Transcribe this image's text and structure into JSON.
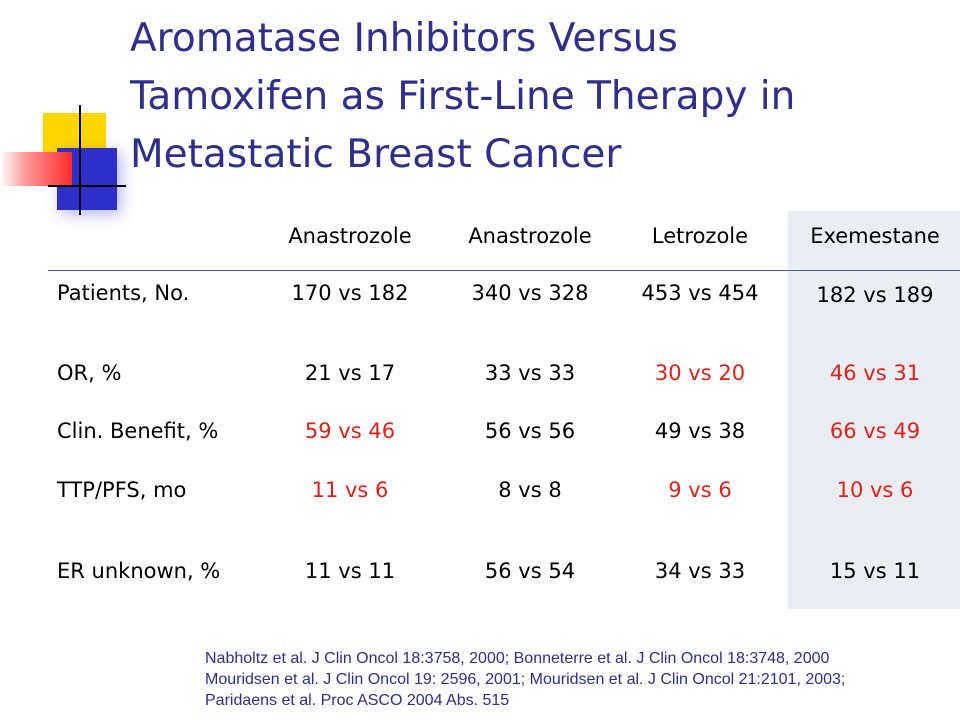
{
  "title_lines": [
    "Aromatase Inhibitors Versus",
    "Tamoxifen as First-Line Therapy in",
    "Metastatic Breast Cancer"
  ],
  "table": {
    "headers": [
      "Anastrozole",
      "Anastrozole",
      "Letrozole",
      "Exemestane"
    ],
    "rows": [
      {
        "label": "Patients, No.",
        "cells": [
          {
            "text": "170 vs 182",
            "red": false
          },
          {
            "text": "340 vs 328",
            "red": false
          },
          {
            "text": "453 vs 454",
            "red": false
          },
          {
            "text": "182 vs 189",
            "red": false
          }
        ]
      },
      {
        "label": "OR, %",
        "cells": [
          {
            "text": "21 vs 17",
            "red": false
          },
          {
            "text": "33 vs 33",
            "red": false
          },
          {
            "text": "30 vs 20",
            "red": true
          },
          {
            "text": "46 vs 31",
            "red": true
          }
        ]
      },
      {
        "label": "Clin. Benefit, %",
        "cells": [
          {
            "text": "59 vs 46",
            "red": true
          },
          {
            "text": "56 vs 56",
            "red": false
          },
          {
            "text": "49 vs 38",
            "red": false
          },
          {
            "text": "66 vs 49",
            "red": true
          }
        ]
      },
      {
        "label": "TTP/PFS, mo",
        "cells": [
          {
            "text": "11 vs 6",
            "red": true
          },
          {
            "text": "8 vs 8",
            "red": false
          },
          {
            "text": "9 vs 6",
            "red": true
          },
          {
            "text": "10 vs 6",
            "red": true
          }
        ]
      },
      {
        "label": "ER unknown, %",
        "cells": [
          {
            "text": "11 vs 11",
            "red": false
          },
          {
            "text": "56 vs 54",
            "red": false
          },
          {
            "text": "34 vs 33",
            "red": false
          },
          {
            "text": "15 vs 11",
            "red": false
          }
        ]
      }
    ]
  },
  "references": [
    "Nabholtz et al. J Clin Oncol 18:3758, 2000; Bonneterre et al. J Clin Oncol 18:3748, 2000",
    "Mouridsen et al. J Clin Oncol 19: 2596, 2001; Mouridsen et al. J Clin Oncol 21:2101, 2003;",
    "Paridaens et al. Proc ASCO 2004 Abs. 515"
  ],
  "colors": {
    "title": "#2e2e8b",
    "highlight_red": "#e0201a",
    "exemestane_column_bg": "#eaeef2",
    "deco_yellow": "#ffd700",
    "deco_blue": "#2e2ec8",
    "deco_red": "#ff2a2a"
  }
}
